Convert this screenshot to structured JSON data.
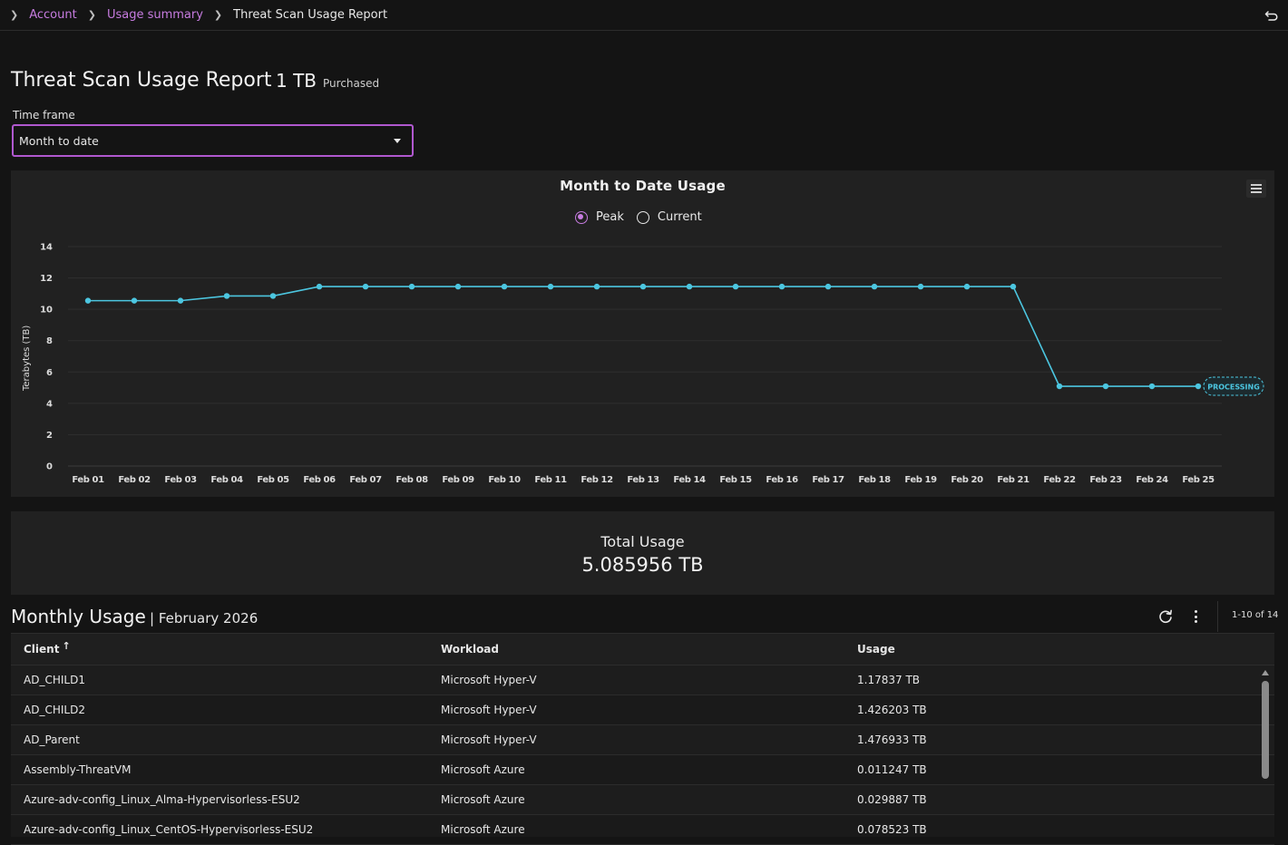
{
  "breadcrumb": {
    "items": [
      "Account",
      "Usage summary"
    ],
    "current": "Threat Scan Usage Report"
  },
  "header": {
    "title": "Threat Scan Usage Report",
    "purchased_amount": "1 TB",
    "purchased_label": "Purchased"
  },
  "timeframe": {
    "label": "Time frame",
    "value": "Month to date"
  },
  "legend": {
    "peak": "Peak",
    "current": "Current",
    "selected": "Peak"
  },
  "chart_data": {
    "type": "line",
    "title": "Month to Date Usage",
    "ylabel": "Terabytes (TB)",
    "xlabel": "",
    "ylim": [
      0,
      14
    ],
    "yticks": [
      0,
      2,
      4,
      6,
      8,
      10,
      12,
      14
    ],
    "grid": true,
    "line_color": "#4cc6e0",
    "categories": [
      "Feb 01",
      "Feb 02",
      "Feb 03",
      "Feb 04",
      "Feb 05",
      "Feb 06",
      "Feb 07",
      "Feb 08",
      "Feb 09",
      "Feb 10",
      "Feb 11",
      "Feb 12",
      "Feb 13",
      "Feb 14",
      "Feb 15",
      "Feb 16",
      "Feb 17",
      "Feb 18",
      "Feb 19",
      "Feb 20",
      "Feb 21",
      "Feb 22",
      "Feb 23",
      "Feb 24",
      "Feb 25"
    ],
    "series": [
      {
        "values": [
          10.55,
          10.55,
          10.55,
          10.85,
          10.85,
          11.45,
          11.45,
          11.45,
          11.45,
          11.45,
          11.45,
          11.45,
          11.45,
          11.45,
          11.45,
          11.45,
          11.45,
          11.45,
          11.45,
          11.45,
          11.45,
          5.09,
          5.09,
          5.09,
          5.09
        ]
      }
    ],
    "annotation": "PROCESSING"
  },
  "total": {
    "label": "Total Usage",
    "value": "5.085956 TB"
  },
  "monthly": {
    "title": "Monthly Usage",
    "month": "| February 2026",
    "pager": "1-10 of 14",
    "columns": [
      "Client",
      "Workload",
      "Usage"
    ],
    "rows": [
      {
        "client": "AD_CHILD1",
        "workload": "Microsoft Hyper-V",
        "usage": "1.17837 TB"
      },
      {
        "client": "AD_CHILD2",
        "workload": "Microsoft Hyper-V",
        "usage": "1.426203 TB"
      },
      {
        "client": "AD_Parent",
        "workload": "Microsoft Hyper-V",
        "usage": "1.476933 TB"
      },
      {
        "client": "Assembly-ThreatVM",
        "workload": "Microsoft Azure",
        "usage": "0.011247 TB"
      },
      {
        "client": "Azure-adv-config_Linux_Alma-Hypervisorless-ESU2",
        "workload": "Microsoft Azure",
        "usage": "0.029887 TB"
      },
      {
        "client": "Azure-adv-config_Linux_CentOS-Hypervisorless-ESU2",
        "workload": "Microsoft Azure",
        "usage": "0.078523 TB"
      }
    ]
  },
  "colors": {
    "accent": "#c77ce0",
    "line": "#4cc6e0",
    "background": "#141414",
    "panel": "#212121"
  }
}
